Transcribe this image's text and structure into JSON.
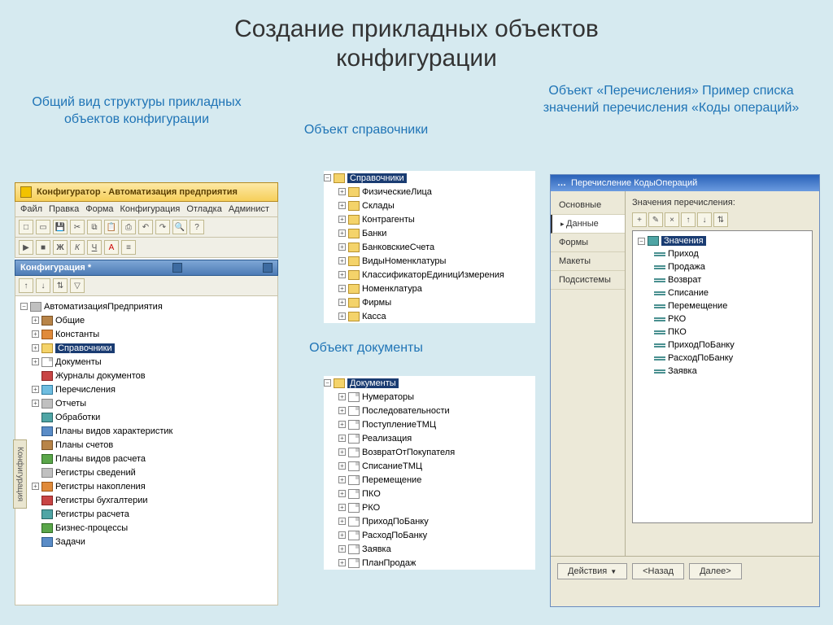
{
  "slide_title_l1": "Создание прикладных объектов",
  "slide_title_l2": "конфигурации",
  "captions": {
    "c1": "Общий вид структуры прикладных объектов конфигурации",
    "c2": "Объект справочники",
    "c3": "Объект «Перечисления» Пример списка значений перечисления «Коды операций»",
    "c4": "Объект документы"
  },
  "panel1": {
    "title": "Конфигуратор - Автоматизация предприятия",
    "menu": [
      "Файл",
      "Правка",
      "Форма",
      "Конфигурация",
      "Отладка",
      "Админист"
    ],
    "subtitle": "Конфигурация *",
    "sidebar_tab": "Конфигурация",
    "root": "АвтоматизацияПредприятия",
    "items": [
      {
        "exp": "+",
        "icon": "i-brown",
        "label": "Общие"
      },
      {
        "exp": "+",
        "icon": "i-orange",
        "label": "Константы"
      },
      {
        "exp": "+",
        "icon": "folder",
        "label": "Справочники",
        "sel": true
      },
      {
        "exp": "+",
        "icon": "i-doc",
        "label": "Документы"
      },
      {
        "exp": "",
        "icon": "i-red",
        "label": "Журналы документов"
      },
      {
        "exp": "+",
        "icon": "i-cyan",
        "label": "Перечисления"
      },
      {
        "exp": "+",
        "icon": "i-gray",
        "label": "Отчеты"
      },
      {
        "exp": "",
        "icon": "i-teal",
        "label": "Обработки"
      },
      {
        "exp": "",
        "icon": "i-blue",
        "label": "Планы видов характеристик"
      },
      {
        "exp": "",
        "icon": "i-brown",
        "label": "Планы счетов"
      },
      {
        "exp": "",
        "icon": "i-green",
        "label": "Планы видов расчета"
      },
      {
        "exp": "",
        "icon": "i-gray",
        "label": "Регистры сведений"
      },
      {
        "exp": "+",
        "icon": "i-orange",
        "label": "Регистры накопления"
      },
      {
        "exp": "",
        "icon": "i-red",
        "label": "Регистры бухгалтерии"
      },
      {
        "exp": "",
        "icon": "i-teal",
        "label": "Регистры расчета"
      },
      {
        "exp": "",
        "icon": "i-green",
        "label": "Бизнес-процессы"
      },
      {
        "exp": "",
        "icon": "i-blue",
        "label": "Задачи"
      }
    ]
  },
  "panel2": {
    "root_label": "Справочники",
    "items": [
      "ФизическиеЛица",
      "Склады",
      "Контрагенты",
      "Банки",
      "БанковскиеСчета",
      "ВидыНоменклатуры",
      "КлассификаторЕдиницИзмерения",
      "Номенклатура",
      "Фирмы",
      "Касса"
    ]
  },
  "panel4": {
    "root_label": "Документы",
    "items": [
      "Нумераторы",
      "Последовательности",
      "ПоступлениеТМЦ",
      "Реализация",
      "ВозвратОтПокупателя",
      "СписаниеТМЦ",
      "Перемещение",
      "ПКО",
      "РКО",
      "ПриходПоБанку",
      "РасходПоБанку",
      "Заявка",
      "ПланПродаж"
    ]
  },
  "panel3": {
    "title": "Перечисление КодыОпераций",
    "tabs": [
      "Основные",
      "Данные",
      "Формы",
      "Макеты",
      "Подсистемы"
    ],
    "active_tab": 1,
    "section_label": "Значения перечисления:",
    "values_root": "Значения",
    "values": [
      "Приход",
      "Продажа",
      "Возврат",
      "Списание",
      "Перемещение",
      "РКО",
      "ПКО",
      "ПриходПоБанку",
      "РасходПоБанку",
      "Заявка"
    ],
    "buttons": {
      "actions": "Действия",
      "back": "<Назад",
      "next": "Далее>"
    }
  },
  "colors": {
    "bg": "#d6eaf0",
    "caption": "#1f74b6",
    "win_title_1c": "#f6cf5a",
    "win_title_blue": "#2a62b8",
    "selection": "#1a3c72"
  }
}
